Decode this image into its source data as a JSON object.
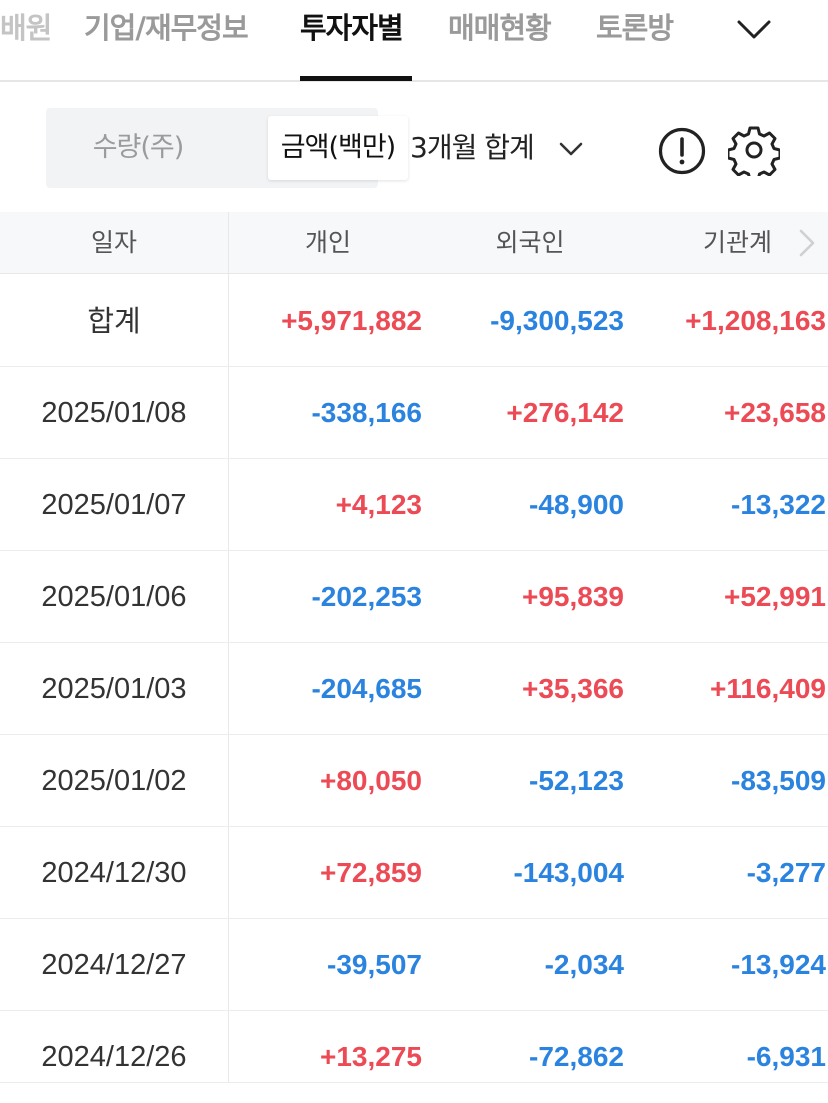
{
  "tabs": [
    {
      "label": "배원",
      "state": "cut"
    },
    {
      "label": "기업/재무정보",
      "state": "normal"
    },
    {
      "label": "투자자별",
      "state": "active"
    },
    {
      "label": "매매현황",
      "state": "normal"
    },
    {
      "label": "토론방",
      "state": "normal"
    }
  ],
  "toolbar": {
    "unit_qty": "수량(주)",
    "unit_amount": "금액(백만)",
    "period": "3개월 합계",
    "info_icon": "exclamation-circle-icon",
    "settings_icon": "gear-icon"
  },
  "table": {
    "headers": [
      "일자",
      "개인",
      "외국인",
      "기관계"
    ],
    "total": {
      "label": "합계",
      "individual": "+5,971,882",
      "foreign": "-9,300,523",
      "institution": "+1,208,163"
    },
    "rows": [
      {
        "date": "2025/01/08",
        "individual": "-338,166",
        "foreign": "+276,142",
        "institution": "+23,658"
      },
      {
        "date": "2025/01/07",
        "individual": "+4,123",
        "foreign": "-48,900",
        "institution": "-13,322"
      },
      {
        "date": "2025/01/06",
        "individual": "-202,253",
        "foreign": "+95,839",
        "institution": "+52,991"
      },
      {
        "date": "2025/01/03",
        "individual": "-204,685",
        "foreign": "+35,366",
        "institution": "+116,409"
      },
      {
        "date": "2025/01/02",
        "individual": "+80,050",
        "foreign": "-52,123",
        "institution": "-83,509"
      },
      {
        "date": "2024/12/30",
        "individual": "+72,859",
        "foreign": "-143,004",
        "institution": "-3,277"
      },
      {
        "date": "2024/12/27",
        "individual": "-39,507",
        "foreign": "-2,034",
        "institution": "-13,924"
      },
      {
        "date": "2024/12/26",
        "individual": "+13,275",
        "foreign": "-72,862",
        "institution": "-6,931"
      }
    ]
  },
  "colors": {
    "positive": "#ec4a55",
    "negative": "#2b83e0",
    "active_tab": "#111111"
  }
}
